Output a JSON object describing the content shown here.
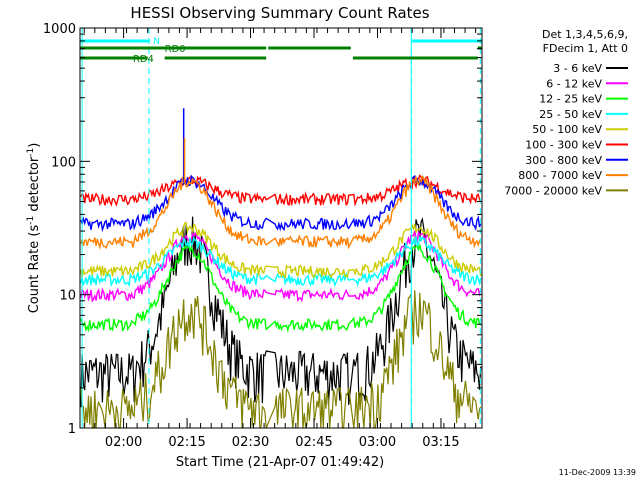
{
  "chart_data": {
    "type": "line",
    "title": "HESSI Observing Summary Count Rates",
    "xlabel": "Start Time (21-Apr-07 01:49:42)",
    "ylabel_main": "Count Rate (s",
    "ylabel_sup1": "-1",
    "ylabel_mid": " detector",
    "ylabel_sup2": "-1",
    "ylabel_end": ")",
    "y_scale": "log",
    "ylim": [
      1,
      1000
    ],
    "x_range_minutes": [
      0,
      95
    ],
    "y_ticks": [
      {
        "value": 1,
        "label": "1"
      },
      {
        "value": 10,
        "label": "10"
      },
      {
        "value": 100,
        "label": "100"
      },
      {
        "value": 1000,
        "label": "1000"
      }
    ],
    "x_ticks": [
      {
        "minute": 10.3,
        "label": "02:00"
      },
      {
        "minute": 25.3,
        "label": "02:15"
      },
      {
        "minute": 40.3,
        "label": "02:30"
      },
      {
        "minute": 55.3,
        "label": "02:45"
      },
      {
        "minute": 70.3,
        "label": "03:00"
      },
      {
        "minute": 85.3,
        "label": "03:15"
      }
    ],
    "legend_header": [
      "Det 1,3,4,5,6,9,",
      "FDecim 1, Att 0"
    ],
    "series": [
      {
        "name": "3 - 6 keV",
        "color": "#000000",
        "night": 2.6,
        "peak": 27
      },
      {
        "name": "6 - 12 keV",
        "color": "#ff00ff",
        "night": 10,
        "peak": 28
      },
      {
        "name": "12 - 25 keV",
        "color": "#00ff00",
        "night": 6,
        "peak": 22
      },
      {
        "name": "25 - 50 keV",
        "color": "#00ffff",
        "night": 13,
        "peak": 25
      },
      {
        "name": "50 - 100 keV",
        "color": "#cccc00",
        "night": 15,
        "peak": 32
      },
      {
        "name": "100 - 300 keV",
        "color": "#ff0000",
        "night": 52,
        "peak": 72
      },
      {
        "name": "300 - 800 keV",
        "color": "#0000ff",
        "night": 34,
        "peak": 72
      },
      {
        "name": "800 - 7000 keV",
        "color": "#ff8000",
        "night": 25,
        "peak": 72
      },
      {
        "name": "7000 - 20000 keV",
        "color": "#808000",
        "night": 1.4,
        "peak": 8
      }
    ],
    "orbit_peaks_minutes": [
      26,
      60,
      80
    ],
    "spikes": [
      {
        "minute": 24.5,
        "series": "300 - 800 keV",
        "value": 250
      },
      {
        "minute": 24.7,
        "series": "800 - 7000 keV",
        "value": 150
      }
    ],
    "flag_labels": {
      "n": "N",
      "rd0": "RD0",
      "rd4": "RD4"
    },
    "flags": {
      "night": [
        {
          "start": 0,
          "end": 16.5
        },
        {
          "start": 78.5,
          "end": 95
        }
      ],
      "rd0": [
        {
          "start": 0,
          "end": 44
        },
        {
          "start": 44.5,
          "end": 64
        },
        {
          "start": 94,
          "end": 95
        }
      ],
      "rd4": [
        {
          "start": 0,
          "end": 16
        },
        {
          "start": 20,
          "end": 44
        },
        {
          "start": 64.5,
          "end": 94
        }
      ]
    },
    "saa_lines_minutes": [
      16.3,
      78.3,
      94.6
    ],
    "timestamp": "11-Dec-2009 13:39"
  }
}
